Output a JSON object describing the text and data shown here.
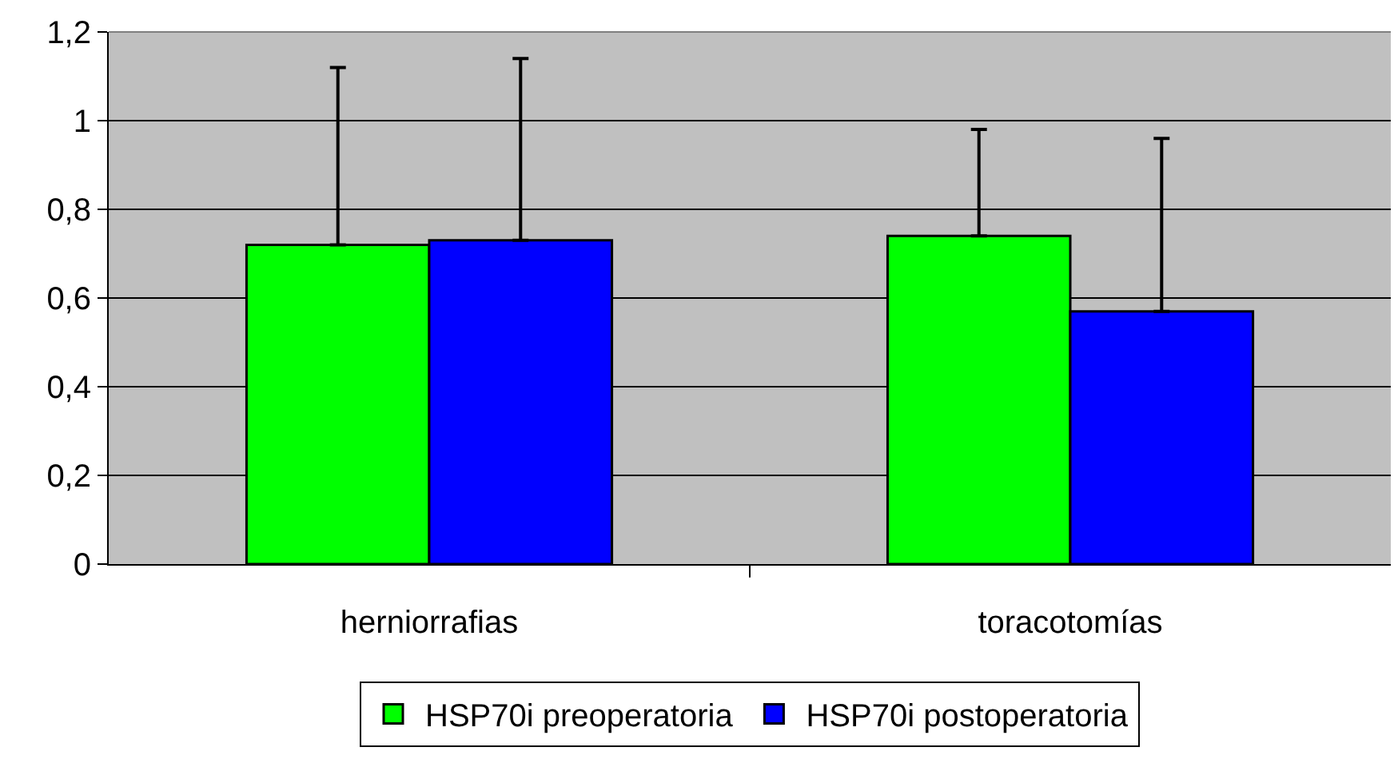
{
  "chart_data": {
    "type": "bar",
    "categories": [
      "herniorrafias",
      "toracotomías"
    ],
    "series": [
      {
        "name": "HSP70i preoperatoria",
        "color": "#00ff00",
        "values": [
          0.72,
          0.74
        ],
        "errors": [
          [
            0.72,
            1.12
          ],
          [
            0.74,
            0.98
          ]
        ]
      },
      {
        "name": "HSP70i postoperatoria",
        "color": "#0000ff",
        "values": [
          0.73,
          0.57
        ],
        "errors": [
          [
            0.73,
            1.14
          ],
          [
            0.57,
            0.96
          ]
        ]
      }
    ],
    "ylim": [
      0,
      1.2
    ],
    "yticks": [
      {
        "value": 0,
        "label": "0"
      },
      {
        "value": 0.2,
        "label": "0,2"
      },
      {
        "value": 0.4,
        "label": "0,4"
      },
      {
        "value": 0.6,
        "label": "0,6"
      },
      {
        "value": 0.8,
        "label": "0,8"
      },
      {
        "value": 1,
        "label": "1"
      },
      {
        "value": 1.2,
        "label": "1,2"
      }
    ],
    "grid": "y",
    "legend": "bottom"
  }
}
